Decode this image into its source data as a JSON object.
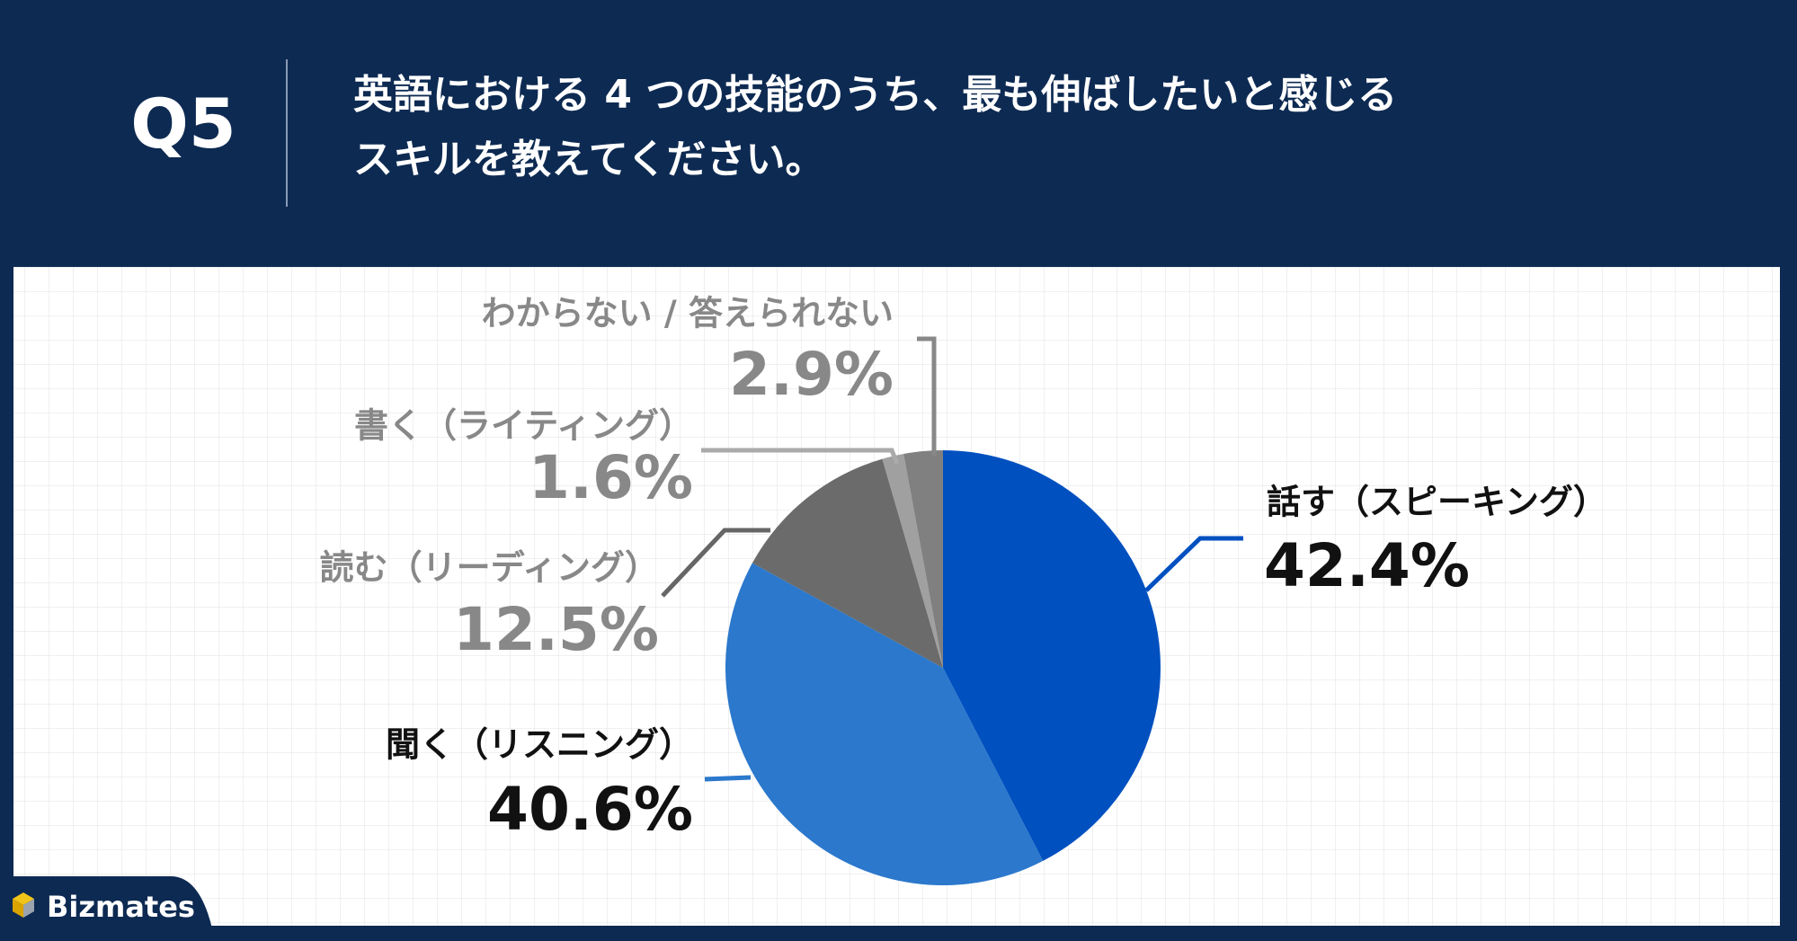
{
  "header": {
    "label": "Q5",
    "title_lines": [
      "英語における 4 つの技能のうち、最も伸ばしたいと感じる",
      "スキルを教えてください。"
    ]
  },
  "chart_data": {
    "type": "pie",
    "categories": [
      "話す（スピーキング）",
      "聞く（リスニング）",
      "読む（リーディング）",
      "書く（ライティング）",
      "わからない / 答えられない"
    ],
    "values": [
      42.4,
      40.6,
      12.5,
      1.6,
      2.9
    ],
    "value_labels": [
      "42.4%",
      "40.6%",
      "12.5%",
      "1.6%",
      "2.9%"
    ],
    "colors": [
      "#0050c0",
      "#2b78cc",
      "#6b6b6b",
      "#a0a0a0",
      "#808080"
    ]
  },
  "brand": "Bizmates"
}
